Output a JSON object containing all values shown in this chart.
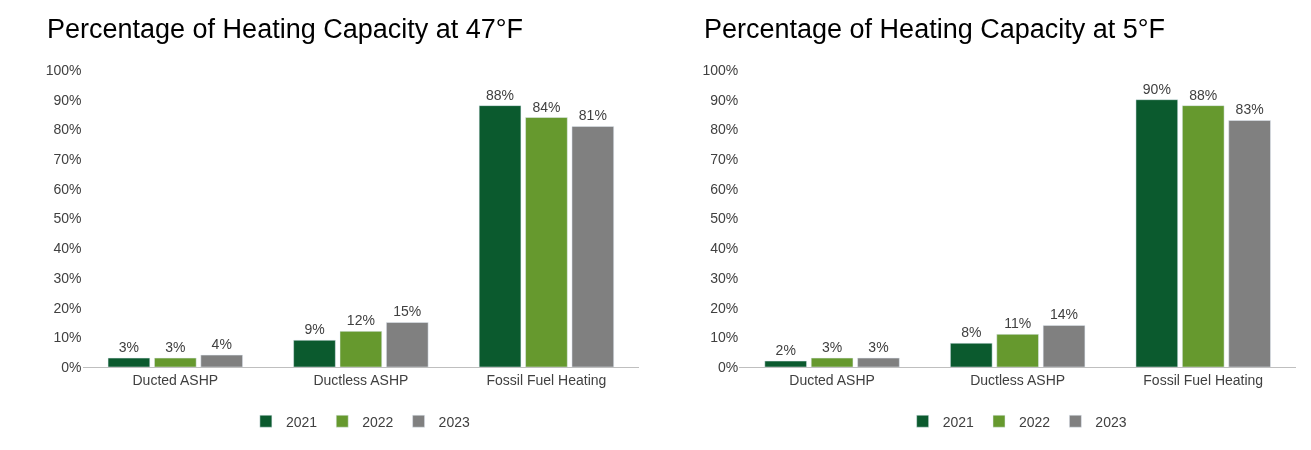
{
  "chart_data": [
    {
      "type": "bar",
      "title": "Percentage of Heating Capacity at 47°F",
      "categories": [
        "Ducted ASHP",
        "Ductless ASHP",
        "Fossil Fuel Heating"
      ],
      "ylim": [
        0,
        100
      ],
      "yticks": [
        {
          "value": 0,
          "label": "0%"
        },
        {
          "value": 10,
          "label": "10%"
        },
        {
          "value": 20,
          "label": "20%"
        },
        {
          "value": 30,
          "label": "30%"
        },
        {
          "value": 40,
          "label": "40%"
        },
        {
          "value": 50,
          "label": "50%"
        },
        {
          "value": 60,
          "label": "60%"
        },
        {
          "value": 70,
          "label": "70%"
        },
        {
          "value": 80,
          "label": "80%"
        },
        {
          "value": 90,
          "label": "90%"
        },
        {
          "value": 100,
          "label": "100%"
        }
      ],
      "legend": "bottom",
      "series": [
        {
          "name": "2021",
          "color": "#0b5a2e",
          "values": [
            3,
            9,
            88
          ],
          "value_labels": [
            "3%",
            "9%",
            "88%"
          ]
        },
        {
          "name": "2022",
          "color": "#66992e",
          "values": [
            3,
            12,
            84
          ],
          "value_labels": [
            "3%",
            "12%",
            "84%"
          ]
        },
        {
          "name": "2023",
          "color": "#808080",
          "values": [
            4,
            15,
            81
          ],
          "value_labels": [
            "4%",
            "15%",
            "81%"
          ]
        }
      ]
    },
    {
      "type": "bar",
      "title": "Percentage of Heating Capacity at 5°F",
      "categories": [
        "Ducted ASHP",
        "Ductless ASHP",
        "Fossil Fuel Heating"
      ],
      "ylim": [
        0,
        100
      ],
      "yticks": [
        {
          "value": 0,
          "label": "0%"
        },
        {
          "value": 10,
          "label": "10%"
        },
        {
          "value": 20,
          "label": "20%"
        },
        {
          "value": 30,
          "label": "30%"
        },
        {
          "value": 40,
          "label": "40%"
        },
        {
          "value": 50,
          "label": "50%"
        },
        {
          "value": 60,
          "label": "60%"
        },
        {
          "value": 70,
          "label": "70%"
        },
        {
          "value": 80,
          "label": "80%"
        },
        {
          "value": 90,
          "label": "90%"
        },
        {
          "value": 100,
          "label": "100%"
        }
      ],
      "legend": "bottom",
      "series": [
        {
          "name": "2021",
          "color": "#0b5a2e",
          "values": [
            2,
            8,
            90
          ],
          "value_labels": [
            "2%",
            "8%",
            "90%"
          ]
        },
        {
          "name": "2022",
          "color": "#66992e",
          "values": [
            3,
            11,
            88
          ],
          "value_labels": [
            "3%",
            "11%",
            "88%"
          ]
        },
        {
          "name": "2023",
          "color": "#808080",
          "values": [
            3,
            14,
            83
          ],
          "value_labels": [
            "3%",
            "14%",
            "83%"
          ]
        }
      ]
    }
  ]
}
